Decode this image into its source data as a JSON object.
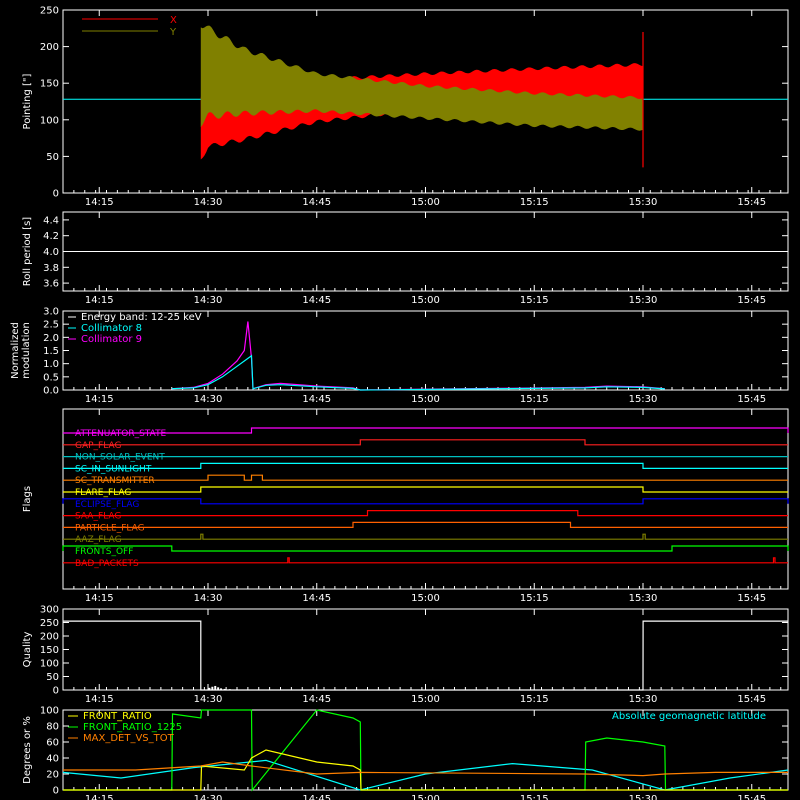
{
  "chart_data": [
    {
      "type": "line",
      "ylabel": "Pointing [\"]",
      "ylim": [
        0,
        250
      ],
      "yticks": [
        0,
        50,
        100,
        150,
        200,
        250
      ],
      "xlim": [
        "14:10",
        "15:50"
      ],
      "xticks": [
        "14:15",
        "14:30",
        "14:45",
        "15:00",
        "15:15",
        "15:30",
        "15:45"
      ],
      "legend": [
        {
          "name": "X",
          "color": "#ff0000"
        },
        {
          "name": "Y",
          "color": "#808000"
        }
      ],
      "baseline": 128,
      "x_envelope": {
        "time": [
          "14:29",
          "14:30",
          "14:35",
          "14:45",
          "15:00",
          "15:15",
          "15:30"
        ],
        "lower": [
          42,
          60,
          70,
          95,
          112,
          118,
          120
        ],
        "upper": [
          135,
          145,
          150,
          157,
          165,
          172,
          178
        ]
      },
      "y_envelope": {
        "time": [
          "14:29",
          "14:30",
          "14:35",
          "14:45",
          "15:00",
          "15:15",
          "15:30"
        ],
        "lower": [
          90,
          100,
          105,
          110,
          100,
          90,
          85
        ],
        "upper": [
          238,
          230,
          200,
          165,
          148,
          138,
          132
        ]
      }
    },
    {
      "type": "line",
      "ylabel": "Roll period [s]",
      "ylim": [
        3.5,
        4.5
      ],
      "yticks": [
        3.6,
        3.8,
        4.0,
        4.2,
        4.4
      ],
      "xticks": [
        "14:15",
        "14:30",
        "14:45",
        "15:00",
        "15:15",
        "15:30",
        "15:45"
      ],
      "value": 4.0
    },
    {
      "type": "line",
      "ylabel": "Normalized modulation",
      "ylim": [
        0,
        3.0
      ],
      "yticks": [
        0.0,
        0.5,
        1.0,
        1.5,
        2.0,
        2.5,
        3.0
      ],
      "xticks": [
        "14:15",
        "14:30",
        "14:45",
        "15:00",
        "15:15",
        "15:30",
        "15:45"
      ],
      "legend": [
        {
          "name": "Energy band: 12-25 keV",
          "color": "#ffffff"
        },
        {
          "name": "Collimator 8",
          "color": "#00ffff"
        },
        {
          "name": "Collimator 9",
          "color": "#ff00ff"
        }
      ],
      "series": [
        {
          "name": "Collimator 9",
          "color": "#ff00ff",
          "x": [
            "14:25",
            "14:28",
            "14:30",
            "14:32",
            "14:34",
            "14:35",
            "14:35.5",
            "14:36",
            "14:36.2",
            "14:38",
            "14:40",
            "14:45",
            "14:50",
            "14:51",
            "15:22",
            "15:25",
            "15:30",
            "15:33"
          ],
          "y": [
            0.05,
            0.1,
            0.25,
            0.6,
            1.1,
            1.5,
            2.6,
            1.2,
            0.05,
            0.2,
            0.25,
            0.15,
            0.08,
            0.0,
            0.1,
            0.15,
            0.12,
            0.05
          ]
        },
        {
          "name": "Collimator 8",
          "color": "#00ffff",
          "x": [
            "14:25",
            "14:28",
            "14:30",
            "14:32",
            "14:34",
            "14:35",
            "14:36",
            "14:36.2",
            "14:38",
            "14:40",
            "14:45",
            "14:50",
            "14:51",
            "15:22",
            "15:25",
            "15:30",
            "15:33"
          ],
          "y": [
            0.05,
            0.08,
            0.2,
            0.5,
            0.9,
            1.1,
            1.3,
            0.05,
            0.18,
            0.2,
            0.12,
            0.06,
            0.0,
            0.08,
            0.12,
            0.1,
            0.04
          ]
        }
      ]
    },
    {
      "type": "line",
      "ylabel": "Flags",
      "xticks": [
        "14:15",
        "14:30",
        "14:45",
        "15:00",
        "15:15",
        "15:30",
        "15:45"
      ],
      "flags": [
        {
          "name": "ATTENUATOR_STATE",
          "color": "#ff00ff",
          "on": [
            [
              "14:36",
              "15:50"
            ]
          ]
        },
        {
          "name": "GAP_FLAG",
          "color": "#ff2020",
          "on": [
            [
              "14:51",
              "15:22"
            ]
          ]
        },
        {
          "name": "NON_SOLAR_EVENT",
          "color": "#00c0c0",
          "on": []
        },
        {
          "name": "SC_IN_SUNLIGHT",
          "color": "#00ffff",
          "on": [
            [
              "14:29",
              "15:30"
            ]
          ]
        },
        {
          "name": "SC_TRANSMITTER",
          "color": "#ff8000",
          "on": [
            [
              "14:30",
              "14:35"
            ],
            [
              "14:36",
              "14:37.5"
            ]
          ]
        },
        {
          "name": "FLARE_FLAG",
          "color": "#ffff00",
          "on": [
            [
              "14:29",
              "15:30"
            ]
          ]
        },
        {
          "name": "ECLIPSE_FLAG",
          "color": "#0000ff",
          "on": [
            [
              "10:00",
              "14:29"
            ],
            [
              "15:30",
              "15:50"
            ]
          ]
        },
        {
          "name": "SAA_FLAG",
          "color": "#ff0000",
          "on": [
            [
              "14:52",
              "15:21"
            ]
          ]
        },
        {
          "name": "PARTICLE_FLAG",
          "color": "#ff6000",
          "on": [
            [
              "14:50",
              "15:20"
            ]
          ]
        },
        {
          "name": "AAZ_FLAG",
          "color": "#808000",
          "on": [
            [
              "14:29",
              "14:29.3"
            ],
            [
              "15:30",
              "15:30.3"
            ]
          ]
        },
        {
          "name": "FRONTS_OFF",
          "color": "#00ff00",
          "on": [
            [
              "10:00",
              "14:25"
            ],
            [
              "15:34",
              "15:50"
            ]
          ]
        },
        {
          "name": "BAD_PACKETS",
          "color": "#ff0000",
          "on": [
            [
              "14:41",
              "14:41.2"
            ],
            [
              "15:48",
              "15:48.2"
            ]
          ]
        }
      ]
    },
    {
      "type": "line",
      "ylabel": "Quality",
      "ylim": [
        0,
        300
      ],
      "yticks": [
        0,
        50,
        100,
        150,
        200,
        250,
        300
      ],
      "xticks": [
        "14:15",
        "14:30",
        "14:45",
        "15:00",
        "15:15",
        "15:30",
        "15:45"
      ],
      "series": [
        {
          "name": "Quality",
          "color": "#ffffff",
          "x": [
            "14:10",
            "14:29",
            "14:29.01",
            "15:30",
            "15:30.01",
            "15:50"
          ],
          "y": [
            255,
            255,
            0,
            0,
            255,
            255
          ]
        }
      ]
    },
    {
      "type": "line",
      "ylabel": "Degrees or %",
      "ylim": [
        0,
        100
      ],
      "yticks": [
        0,
        20,
        40,
        60,
        80,
        100
      ],
      "xticks": [
        "14:15",
        "14:30",
        "14:45",
        "15:00",
        "15:15",
        "15:30",
        "15:45"
      ],
      "legend": [
        {
          "name": "FRONT_RATIO",
          "color": "#ffff00"
        },
        {
          "name": "FRONT_RATIO_1225",
          "color": "#00ff00"
        },
        {
          "name": "MAX_DET_VS_TOT",
          "color": "#ff8000"
        }
      ],
      "annotation": "Absolute geomagnetic latitude",
      "series": [
        {
          "name": "Absolute geomagnetic latitude",
          "color": "#00ffff",
          "x": [
            "14:10",
            "14:18",
            "14:28",
            "14:38",
            "14:51",
            "15:00",
            "15:12",
            "15:23",
            "15:33",
            "15:42",
            "15:50"
          ],
          "y": [
            22,
            15,
            28,
            37,
            0,
            20,
            33,
            25,
            0,
            15,
            25
          ]
        },
        {
          "name": "FRONT_RATIO_1225",
          "color": "#00ff00",
          "x": [
            "14:10",
            "14:25",
            "14:25.1",
            "14:29",
            "14:29.1",
            "14:36",
            "14:36.1",
            "14:45",
            "14:50",
            "14:51",
            "14:51.1",
            "15:22",
            "15:22.1",
            "15:25",
            "15:30",
            "15:33",
            "15:33.1",
            "15:50"
          ],
          "y": [
            0,
            0,
            95,
            90,
            100,
            100,
            0,
            100,
            90,
            85,
            0,
            0,
            60,
            65,
            60,
            55,
            0,
            0
          ]
        },
        {
          "name": "FRONT_RATIO",
          "color": "#ffff00",
          "x": [
            "14:10",
            "14:29",
            "14:29.1",
            "14:35",
            "14:36",
            "14:38",
            "14:45",
            "14:50",
            "14:51",
            "14:51.1",
            "15:50"
          ],
          "y": [
            0,
            0,
            30,
            25,
            40,
            50,
            35,
            30,
            25,
            0,
            0
          ]
        },
        {
          "name": "MAX_DET_VS_TOT",
          "color": "#ff8000",
          "x": [
            "14:10",
            "14:20",
            "14:29",
            "14:32",
            "14:36",
            "14:45",
            "14:51",
            "15:22",
            "15:30",
            "15:33",
            "15:40",
            "15:50"
          ],
          "y": [
            25,
            25,
            30,
            35,
            30,
            20,
            22,
            20,
            18,
            20,
            22,
            22
          ]
        }
      ]
    }
  ]
}
